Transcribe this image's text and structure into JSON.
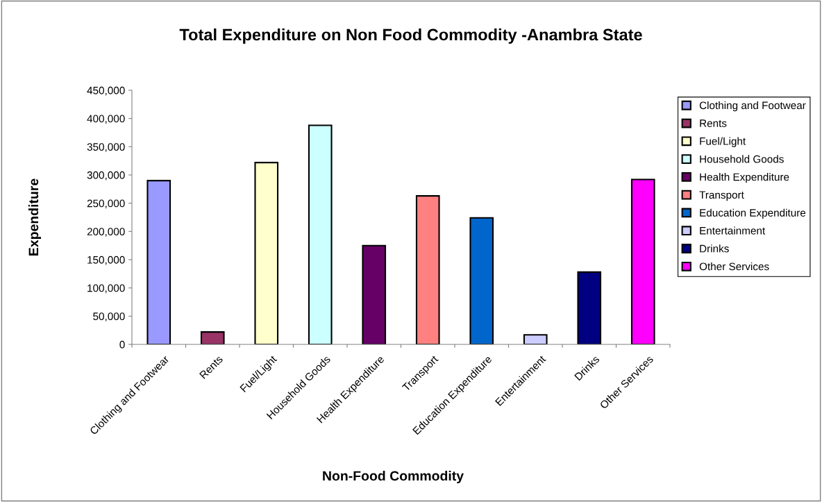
{
  "chart_data": {
    "type": "bar",
    "title": "Total Expenditure on Non Food Commodity -Anambra State",
    "xlabel": "Non-Food Commodity",
    "ylabel": "Expenditure",
    "categories": [
      "Clothing and Footwear",
      "Rents",
      "Fuel/Light",
      "Household Goods",
      "Health Expenditure",
      "Transport",
      "Education Expenditure",
      "Entertainment",
      "Drinks",
      "Other Services"
    ],
    "series": [
      {
        "name": "Clothing and Footwear",
        "color": "#9999ff",
        "values": [
          290000,
          null,
          null,
          null,
          null,
          null,
          null,
          null,
          null,
          null
        ]
      },
      {
        "name": "Rents",
        "color": "#993366",
        "values": [
          null,
          22000,
          null,
          null,
          null,
          null,
          null,
          null,
          null,
          null
        ]
      },
      {
        "name": "Fuel/Light",
        "color": "#ffffcc",
        "values": [
          null,
          null,
          322000,
          null,
          null,
          null,
          null,
          null,
          null,
          null
        ]
      },
      {
        "name": "Household Goods",
        "color": "#ccffff",
        "values": [
          null,
          null,
          null,
          388000,
          null,
          null,
          null,
          null,
          null,
          null
        ]
      },
      {
        "name": "Health Expenditure",
        "color": "#660066",
        "values": [
          null,
          null,
          null,
          null,
          175000,
          null,
          null,
          null,
          null,
          null
        ]
      },
      {
        "name": "Transport",
        "color": "#ff8080",
        "values": [
          null,
          null,
          null,
          null,
          null,
          263000,
          null,
          null,
          null,
          null
        ]
      },
      {
        "name": "Education Expenditure",
        "color": "#0066cc",
        "values": [
          null,
          null,
          null,
          null,
          null,
          null,
          224000,
          null,
          null,
          null
        ]
      },
      {
        "name": "Entertainment",
        "color": "#ccccff",
        "values": [
          null,
          null,
          null,
          null,
          null,
          null,
          null,
          17000,
          null,
          null
        ]
      },
      {
        "name": "Drinks",
        "color": "#000080",
        "values": [
          null,
          null,
          null,
          null,
          null,
          null,
          null,
          null,
          128000,
          null
        ]
      },
      {
        "name": "Other Services",
        "color": "#ff00ff",
        "values": [
          null,
          null,
          null,
          null,
          null,
          null,
          null,
          null,
          null,
          292000
        ]
      }
    ],
    "ylim": [
      0,
      450000
    ],
    "yticks": [
      {
        "value": 0,
        "label": "0"
      },
      {
        "value": 50000,
        "label": "50,000"
      },
      {
        "value": 100000,
        "label": "100,000"
      },
      {
        "value": 150000,
        "label": "150,000"
      },
      {
        "value": 200000,
        "label": "200,000"
      },
      {
        "value": 250000,
        "label": "250,000"
      },
      {
        "value": 300000,
        "label": "300,000"
      },
      {
        "value": 350000,
        "label": "350,000"
      },
      {
        "value": 400000,
        "label": "400,000"
      },
      {
        "value": 450000,
        "label": "450,000"
      }
    ],
    "grid": false,
    "legend": "right"
  }
}
